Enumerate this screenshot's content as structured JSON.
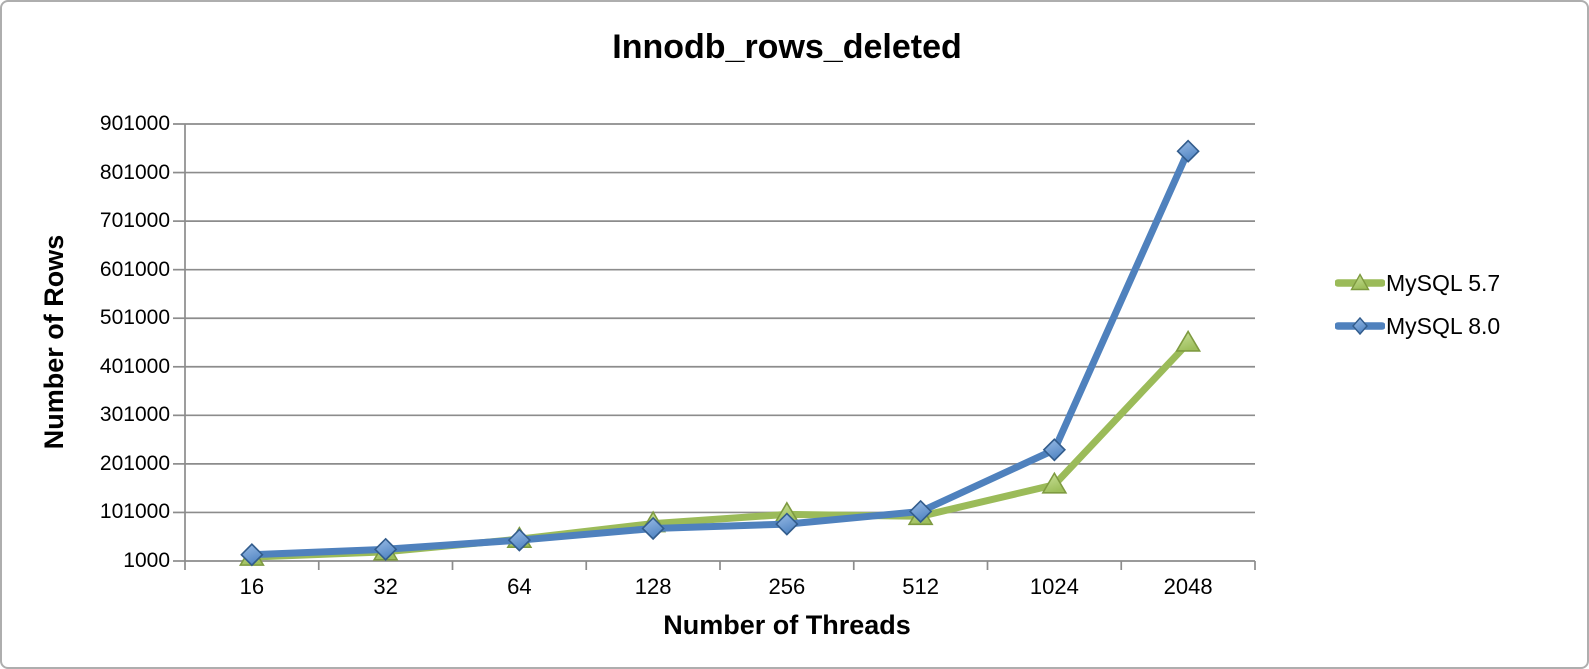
{
  "frame": {
    "background": "#ffffff",
    "border_color": "#aeaeae"
  },
  "chart_data": {
    "type": "line",
    "title": "Innodb_rows_deleted",
    "xlabel": "Number of Threads",
    "ylabel": "Number of Rows",
    "categories": [
      "16",
      "32",
      "64",
      "128",
      "256",
      "512",
      "1024",
      "2048"
    ],
    "series": [
      {
        "name": "MySQL 5.7",
        "marker": "triangle",
        "line_color": "#9BBB59",
        "marker_fill": "#9DBE5B",
        "marker_fill_light": "#CBE29B",
        "marker_stroke": "#7E9A40",
        "values": [
          9000,
          20000,
          46000,
          78000,
          97000,
          93000,
          158000,
          450000
        ]
      },
      {
        "name": "MySQL 8.0",
        "marker": "diamond",
        "line_color": "#4F81BD",
        "marker_fill": "#5487C4",
        "marker_fill_light": "#9ABCE6",
        "marker_stroke": "#325C8C",
        "values": [
          14000,
          25000,
          44000,
          68000,
          77000,
          103000,
          230000,
          845000
        ]
      }
    ],
    "y_axis": {
      "min": 1000,
      "max": 901000,
      "step": 100000,
      "tick_labels": [
        "1000",
        "101000",
        "201000",
        "301000",
        "401000",
        "501000",
        "601000",
        "701000",
        "801000",
        "901000"
      ]
    },
    "legend_position": "right",
    "grid": {
      "show": true,
      "color": "#8C8C8C"
    }
  }
}
